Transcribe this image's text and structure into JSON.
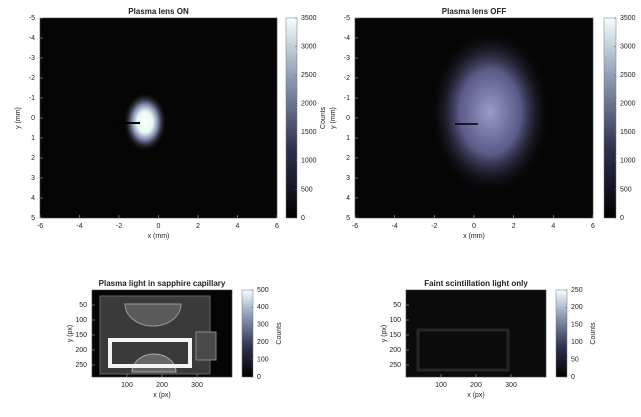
{
  "chart_data": [
    {
      "type": "image",
      "title": "Plasma lens ON",
      "xlabel": "x (mm)",
      "ylabel": "y (mm)",
      "xlim": [
        -6,
        6
      ],
      "ylim": [
        -5,
        5
      ],
      "yreverse": true,
      "xticks": [
        -6,
        -4,
        -2,
        0,
        2,
        4,
        6
      ],
      "yticks": [
        -5,
        -4,
        -3,
        -2,
        -1,
        0,
        1,
        2,
        3,
        4,
        5
      ],
      "colorbar": {
        "lim": [
          0,
          3500
        ],
        "ticks": [
          0,
          500,
          1000,
          1500,
          2000,
          2500,
          3000,
          3500
        ],
        "label": "Counts"
      }
    },
    {
      "type": "image",
      "title": "Plasma lens OFF",
      "xlabel": "x (mm)",
      "ylabel": "y (mm)",
      "xlim": [
        -6,
        6
      ],
      "ylim": [
        -5,
        5
      ],
      "yreverse": true,
      "xticks": [
        -6,
        -4,
        -2,
        0,
        2,
        4,
        6
      ],
      "yticks": [
        -5,
        -4,
        -3,
        -2,
        -1,
        0,
        1,
        2,
        3,
        4,
        5
      ],
      "colorbar": {
        "lim": [
          0,
          3500
        ],
        "ticks": [
          0,
          500,
          1000,
          1500,
          2000,
          2500,
          3000,
          3500
        ]
      }
    },
    {
      "type": "image",
      "title": "Plasma light in sapphire capillary",
      "xlabel": "x (px)",
      "ylabel": "y (px)",
      "xlim": [
        0,
        400
      ],
      "ylim": [
        0,
        290
      ],
      "yreverse": true,
      "xticks": [
        100,
        200,
        300
      ],
      "yticks": [
        50,
        100,
        150,
        200,
        250
      ],
      "colorbar": {
        "lim": [
          0,
          500
        ],
        "ticks": [
          0,
          100,
          200,
          300,
          400,
          500
        ],
        "label": "Counts"
      }
    },
    {
      "type": "image",
      "title": "Faint scintillation light only",
      "xlabel": "x (px)",
      "ylabel": "y (px)",
      "xlim": [
        0,
        400
      ],
      "ylim": [
        0,
        290
      ],
      "yreverse": true,
      "xticks": [
        100,
        200,
        300
      ],
      "yticks": [
        50,
        100,
        150,
        200,
        250
      ],
      "colorbar": {
        "lim": [
          0,
          250
        ],
        "ticks": [
          0,
          50,
          100,
          150,
          200,
          250
        ],
        "label": "Counts"
      }
    }
  ]
}
